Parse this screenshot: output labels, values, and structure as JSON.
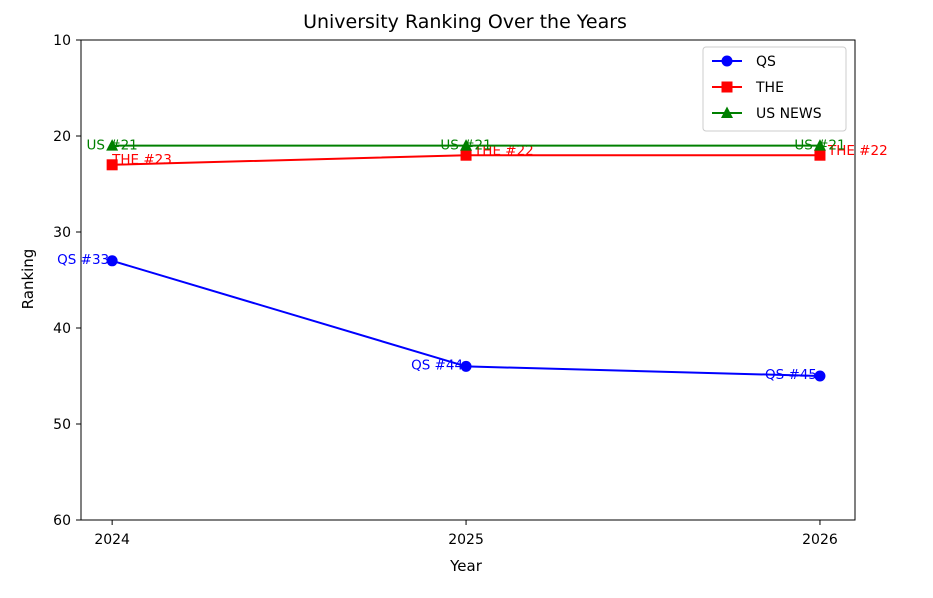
{
  "chart_data": {
    "type": "line",
    "title": "University Ranking Over the Years",
    "xlabel": "Year",
    "ylabel": "Ranking",
    "x": [
      2024,
      2025,
      2026
    ],
    "x_tick_labels": [
      "2024",
      "2025",
      "2026"
    ],
    "ylim": [
      60,
      10
    ],
    "y_inverted": true,
    "y_ticks": [
      10,
      20,
      30,
      40,
      50,
      60
    ],
    "y_tick_labels": [
      "10",
      "20",
      "30",
      "40",
      "50",
      "60"
    ],
    "grid": false,
    "legend_position": "top-right",
    "series": [
      {
        "name": "QS",
        "color": "#0000ff",
        "marker": "circle",
        "values": [
          33,
          44,
          45
        ],
        "labels": [
          "QS #33",
          "QS #44",
          "QS #45"
        ]
      },
      {
        "name": "THE",
        "color": "#ff0000",
        "marker": "square",
        "values": [
          23,
          22,
          22
        ],
        "labels": [
          "THE #23",
          "THE #22",
          "THE #22"
        ]
      },
      {
        "name": "US NEWS",
        "color": "#008000",
        "marker": "triangle",
        "values": [
          21,
          21,
          21
        ],
        "labels": [
          "US #21",
          "US #21",
          "US #21"
        ]
      }
    ]
  }
}
